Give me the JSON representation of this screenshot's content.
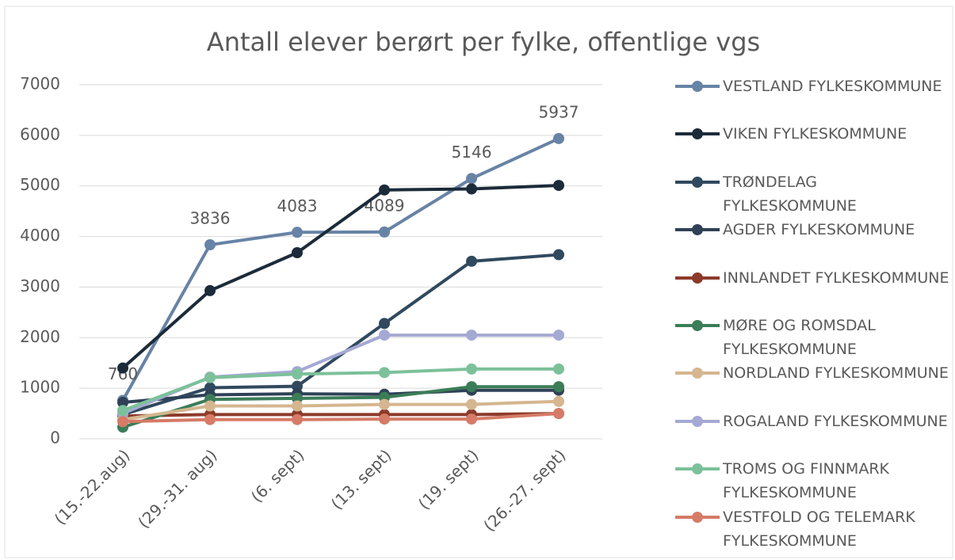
{
  "chart_data": {
    "type": "line",
    "title": "Antall elever berørt per fylke, offentlige vgs",
    "categories": [
      "(15.-22.aug)",
      "(29.-31. aug)",
      "(6. sept)",
      "(13. sept)",
      "(19. sept)",
      "(26.-27. sept)"
    ],
    "ylim": [
      0,
      7000
    ],
    "yticks": [
      0,
      1000,
      2000,
      3000,
      4000,
      5000,
      6000,
      7000
    ],
    "grid": true,
    "legend": "right",
    "series": [
      {
        "name": "VESTLAND FYLKESKOMMUNE",
        "color": "#6783a5",
        "values": [
          760,
          3836,
          4083,
          4089,
          5146,
          5937
        ],
        "show_values": true
      },
      {
        "name": "VIKEN FYLKESKOMMUNE",
        "color": "#1c2b3a",
        "values": [
          1400,
          2930,
          3680,
          4920,
          4940,
          5010
        ]
      },
      {
        "name": "TRØNDELAG FYLKESKOMMUNE",
        "color": "#30495e",
        "values": [
          480,
          1010,
          1040,
          2280,
          3510,
          3640
        ]
      },
      {
        "name": "AGDER FYLKESKOMMUNE",
        "color": "#2f4156",
        "values": [
          720,
          870,
          890,
          880,
          960,
          960
        ]
      },
      {
        "name": "INNLANDET FYLKESKOMMUNE",
        "color": "#8c3b2b",
        "values": [
          450,
          480,
          480,
          480,
          480,
          500
        ]
      },
      {
        "name": "MØRE OG ROMSDAL FYLKESKOMMUNE",
        "color": "#3b7d58",
        "values": [
          230,
          780,
          800,
          820,
          1030,
          1030
        ]
      },
      {
        "name": "NORDLAND FYLKESKOMMUNE",
        "color": "#d5b690",
        "values": [
          380,
          650,
          650,
          680,
          680,
          740
        ]
      },
      {
        "name": "ROGALAND FYLKESKOMMUNE",
        "color": "#a5a9d3",
        "values": [
          500,
          1220,
          1330,
          2050,
          2050,
          2050
        ]
      },
      {
        "name": "TROMS OG FINNMARK FYLKESKOMMUNE",
        "color": "#7cc19a",
        "values": [
          560,
          1210,
          1280,
          1310,
          1380,
          1380
        ]
      },
      {
        "name": "VESTFOLD OG TELEMARK FYLKESKOMMUNE",
        "color": "#d57b67",
        "values": [
          340,
          380,
          380,
          390,
          390,
          500
        ]
      }
    ]
  }
}
